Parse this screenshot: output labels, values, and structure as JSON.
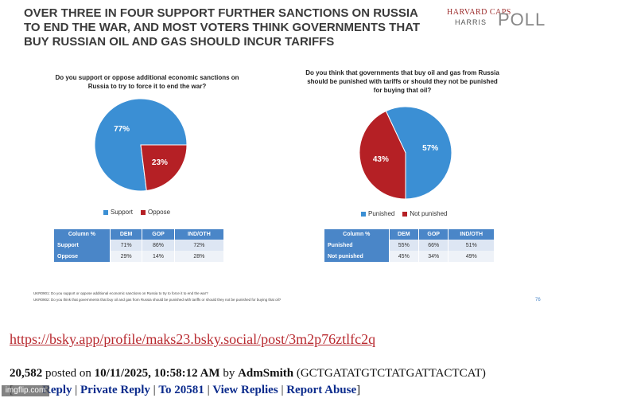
{
  "headline": "OVER THREE IN FOUR SUPPORT FURTHER SANCTIONS ON RUSSIA TO END THE WAR, AND MOST VOTERS THINK GOVERNMENTS THAT BUY RUSSIAN OIL AND GAS SHOULD INCUR TARIFFS",
  "logo": {
    "line1": "HARVARD CAPS",
    "line2": "HARRIS",
    "line3": "POLL"
  },
  "chart_data": [
    {
      "type": "pie",
      "title": "Do you support or oppose additional economic sanctions on Russia to try to force it to end the war?",
      "categories": [
        "Support",
        "Oppose"
      ],
      "values": [
        77,
        23
      ],
      "labels": [
        "77%",
        "23%"
      ],
      "colors": [
        "#3b8fd4",
        "#b52025"
      ],
      "legend": "bottom"
    },
    {
      "type": "pie",
      "title": "Do you think that governments that buy oil and gas from Russia should be punished with tariffs or should they not be punished for buying that oil?",
      "categories": [
        "Punished",
        "Not punished"
      ],
      "values": [
        57,
        43
      ],
      "labels": [
        "57%",
        "43%"
      ],
      "colors": [
        "#3b8fd4",
        "#b52025"
      ],
      "legend": "bottom"
    }
  ],
  "table1": {
    "headers": [
      "Column %",
      "DEM",
      "GOP",
      "IND/OTH"
    ],
    "rows": [
      [
        "Support",
        "71%",
        "86%",
        "72%"
      ],
      [
        "Oppose",
        "29%",
        "14%",
        "28%"
      ]
    ]
  },
  "table2": {
    "headers": [
      "Column %",
      "DEM",
      "GOP",
      "IND/OTH"
    ],
    "rows": [
      [
        "Punished",
        "55%",
        "66%",
        "51%"
      ],
      [
        "Not punished",
        "45%",
        "34%",
        "49%"
      ]
    ]
  },
  "footnotes": [
    "UKR0901: Do you support or oppose additional economic sanctions on Russia to try to force it to end the war?",
    "UKR0902: Do you think that governments that buy oil and gas from Russia should be punished with tariffs or should they not be punished for buying that oil?"
  ],
  "page_number": "76",
  "post": {
    "link": "https://bsky.app/profile/maks23.bsky.social/post/3m2p76ztlfc2q",
    "number": "20,582",
    "posted_on_label": "posted on",
    "date": "10/11/2025, 10:58:12 AM",
    "by_label": "by",
    "author": "AdmSmith",
    "author_tag": "(GCTGATATGTCTATGATTACTCAT)"
  },
  "actions": {
    "info_prefix": "[",
    "reply": "Reply",
    "private_reply": "Private Reply",
    "to": "To 20581",
    "view_replies": "View Replies",
    "report_abuse": "Report Abuse",
    "suffix": "]"
  },
  "watermark": "imgflip.com"
}
